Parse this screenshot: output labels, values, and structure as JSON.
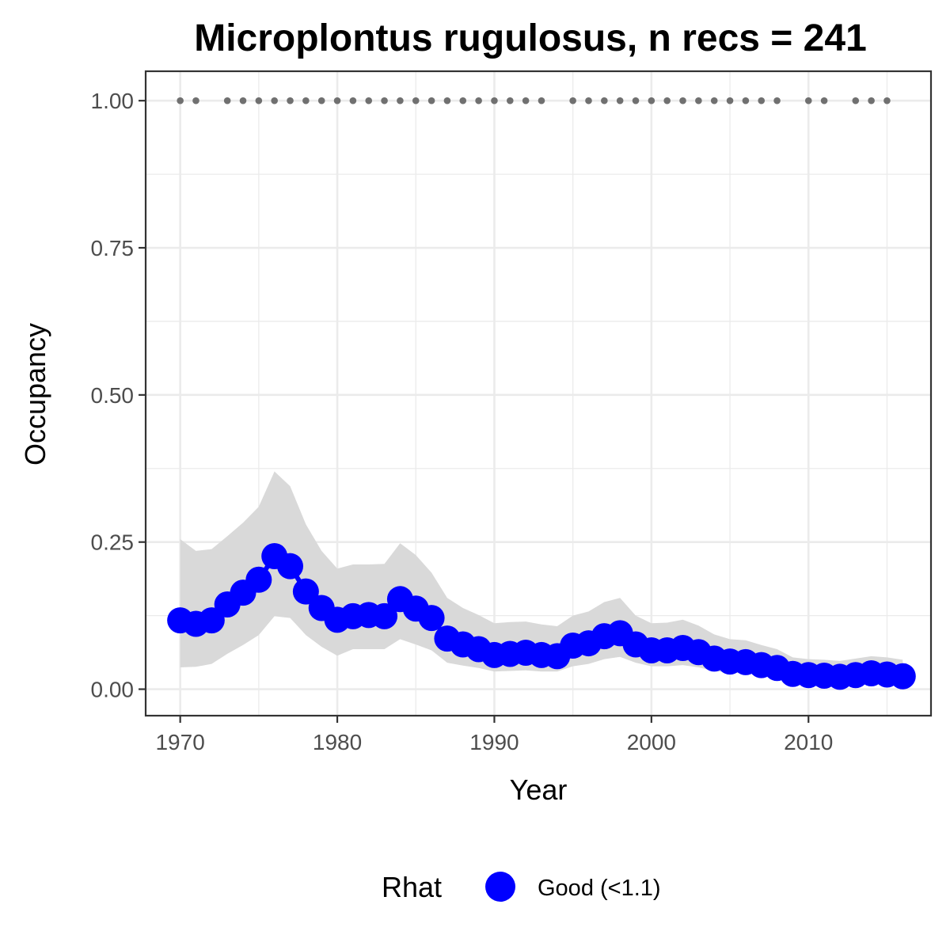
{
  "chart_data": {
    "type": "line",
    "title": "Microplontus rugulosus, n recs = 241",
    "xlabel": "Year",
    "ylabel": "Occupancy",
    "xlim": [
      1967.8,
      2017.8
    ],
    "ylim": [
      -0.045,
      1.05
    ],
    "x_ticks": [
      1970,
      1980,
      1990,
      2000,
      2010
    ],
    "x_tick_labels": [
      "1970",
      "1980",
      "1990",
      "2000",
      "2010"
    ],
    "y_ticks": [
      0,
      0.25,
      0.5,
      0.75,
      1.0
    ],
    "y_tick_labels": [
      "0.00",
      "0.25",
      "0.50",
      "0.75",
      "1.00"
    ],
    "grid": true,
    "colors": {
      "series": "#0000ff",
      "ribbon": "#d9d9d9",
      "records": "#707070",
      "grid": "#ebebeb",
      "panel_border": "#333333"
    },
    "series": [
      {
        "name": "Good (<1.1)",
        "x": [
          1970,
          1971,
          1972,
          1973,
          1974,
          1975,
          1976,
          1977,
          1978,
          1979,
          1980,
          1981,
          1982,
          1983,
          1984,
          1985,
          1986,
          1987,
          1988,
          1989,
          1990,
          1991,
          1992,
          1993,
          1994,
          1995,
          1996,
          1997,
          1998,
          1999,
          2000,
          2001,
          2002,
          2003,
          2004,
          2005,
          2006,
          2007,
          2008,
          2009,
          2010,
          2011,
          2012,
          2013,
          2014,
          2015,
          2016
        ],
        "y": [
          0.117,
          0.111,
          0.117,
          0.144,
          0.164,
          0.186,
          0.226,
          0.209,
          0.166,
          0.138,
          0.118,
          0.124,
          0.126,
          0.124,
          0.153,
          0.137,
          0.121,
          0.086,
          0.076,
          0.068,
          0.058,
          0.06,
          0.062,
          0.058,
          0.056,
          0.074,
          0.078,
          0.09,
          0.095,
          0.076,
          0.066,
          0.066,
          0.07,
          0.063,
          0.052,
          0.047,
          0.046,
          0.041,
          0.036,
          0.026,
          0.024,
          0.023,
          0.021,
          0.024,
          0.027,
          0.025,
          0.022
        ],
        "lower": [
          0.037,
          0.038,
          0.043,
          0.06,
          0.075,
          0.092,
          0.124,
          0.121,
          0.092,
          0.072,
          0.057,
          0.068,
          0.068,
          0.068,
          0.085,
          0.076,
          0.066,
          0.045,
          0.04,
          0.036,
          0.03,
          0.031,
          0.032,
          0.03,
          0.03,
          0.039,
          0.043,
          0.051,
          0.055,
          0.045,
          0.039,
          0.039,
          0.041,
          0.037,
          0.031,
          0.028,
          0.027,
          0.024,
          0.021,
          0.015,
          0.013,
          0.012,
          0.011,
          0.012,
          0.014,
          0.013,
          0.011
        ],
        "upper": [
          0.255,
          0.235,
          0.238,
          0.26,
          0.283,
          0.31,
          0.37,
          0.345,
          0.28,
          0.235,
          0.205,
          0.212,
          0.212,
          0.213,
          0.248,
          0.228,
          0.198,
          0.155,
          0.138,
          0.126,
          0.112,
          0.114,
          0.115,
          0.11,
          0.107,
          0.125,
          0.132,
          0.148,
          0.155,
          0.125,
          0.112,
          0.113,
          0.118,
          0.108,
          0.093,
          0.085,
          0.083,
          0.075,
          0.068,
          0.054,
          0.051,
          0.05,
          0.048,
          0.052,
          0.056,
          0.054,
          0.05
        ]
      }
    ],
    "records": {
      "y": 1.0,
      "x": [
        1970,
        1971,
        1973,
        1974,
        1975,
        1976,
        1977,
        1978,
        1979,
        1980,
        1981,
        1982,
        1983,
        1984,
        1985,
        1986,
        1987,
        1988,
        1989,
        1990,
        1991,
        1992,
        1993,
        1995,
        1996,
        1997,
        1998,
        1999,
        2000,
        2001,
        2002,
        2003,
        2004,
        2005,
        2006,
        2007,
        2008,
        2010,
        2011,
        2013,
        2014,
        2015
      ]
    },
    "legend": {
      "title": "Rhat",
      "position": "bottom",
      "entries": [
        {
          "label": "Good (<1.1)",
          "color": "#0000ff"
        }
      ]
    }
  }
}
